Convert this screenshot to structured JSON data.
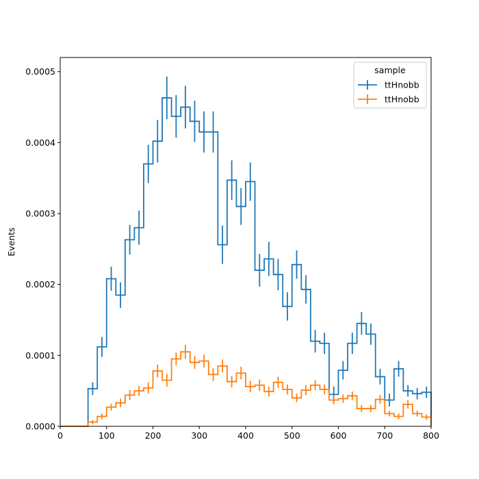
{
  "chart_data": {
    "type": "histogram-step",
    "xlabel": "",
    "ylabel": "Events",
    "xlim": [
      0,
      800
    ],
    "ylim": [
      0,
      0.00052
    ],
    "xticks": [
      0,
      100,
      200,
      300,
      400,
      500,
      600,
      700,
      800
    ],
    "xtick_labels": [
      "0",
      "100",
      "200",
      "300",
      "400",
      "500",
      "600",
      "700",
      "800"
    ],
    "yticks": [
      0,
      0.0001,
      0.0002,
      0.0003,
      0.0004,
      0.0005
    ],
    "ytick_labels": [
      "0.0000",
      "0.0001",
      "0.0002",
      "0.0003",
      "0.0004",
      "0.0005"
    ],
    "grid": false,
    "legend": {
      "title": "sample",
      "placement": "top-right"
    },
    "bin_edges": [
      0,
      20,
      40,
      60,
      80,
      100,
      120,
      140,
      160,
      180,
      200,
      220,
      240,
      260,
      280,
      300,
      320,
      340,
      360,
      380,
      400,
      420,
      440,
      460,
      480,
      500,
      520,
      540,
      560,
      580,
      600,
      620,
      640,
      660,
      680,
      700,
      720,
      740,
      760,
      780,
      800
    ],
    "series": [
      {
        "name": "ttHnobb",
        "color": "#1f77b4",
        "values": [
          0,
          0,
          0,
          5.3e-05,
          0.000112,
          0.000208,
          0.000185,
          0.000263,
          0.00028,
          0.00037,
          0.000402,
          0.000463,
          0.000437,
          0.00045,
          0.00043,
          0.000415,
          0.000415,
          0.000256,
          0.000347,
          0.00031,
          0.000345,
          0.00022,
          0.000236,
          0.000214,
          0.000169,
          0.000228,
          0.000193,
          0.00012,
          0.000117,
          4.5e-05,
          7.9e-05,
          0.000117,
          0.000145,
          0.00013,
          7e-05,
          3.7e-05,
          8.1e-05,
          5e-05,
          4.6e-05,
          4.8e-05
        ],
        "errors": [
          0,
          0,
          0,
          9e-06,
          1.4e-05,
          1.7e-05,
          1.8e-05,
          2.1e-05,
          2.4e-05,
          2.7e-05,
          3e-05,
          3e-05,
          3e-05,
          3e-05,
          2.9e-05,
          2.9e-05,
          2.9e-05,
          2.7e-05,
          2.8e-05,
          2.6e-05,
          2.7e-05,
          2.3e-05,
          2.4e-05,
          2.2e-05,
          2e-05,
          2e-05,
          2e-05,
          1.6e-05,
          1.5e-05,
          1.1e-05,
          1.3e-05,
          1.5e-05,
          1.6e-05,
          1.5e-05,
          1.1e-05,
          9e-06,
          1.1e-05,
          8e-06,
          8e-06,
          8e-06
        ]
      },
      {
        "name": "ttHnobb",
        "color": "#ff7f0e",
        "values": [
          0,
          0,
          0,
          6e-06,
          1.4e-05,
          2.7e-05,
          3.3e-05,
          4.4e-05,
          5e-05,
          5.4e-05,
          7.8e-05,
          6.5e-05,
          9.5e-05,
          0.000105,
          9e-05,
          9.2e-05,
          7.3e-05,
          8.5e-05,
          6.3e-05,
          7.5e-05,
          5.6e-05,
          5.8e-05,
          4.9e-05,
          6.2e-05,
          5.2e-05,
          4e-05,
          5.1e-05,
          5.8e-05,
          5.2e-05,
          3.7e-05,
          3.9e-05,
          4.3e-05,
          2.5e-05,
          2.5e-05,
          3.8e-05,
          1.8e-05,
          1.4e-05,
          3.1e-05,
          1.8e-05,
          1.3e-05
        ],
        "errors": [
          0,
          0,
          0,
          3e-06,
          4e-06,
          5e-06,
          6e-06,
          7e-06,
          7e-06,
          8e-06,
          9e-06,
          9e-06,
          9e-06,
          1e-05,
          9e-06,
          9e-06,
          9e-06,
          9e-06,
          8e-06,
          9e-06,
          8e-06,
          8e-06,
          7e-06,
          8e-06,
          7e-06,
          6e-06,
          7e-06,
          7e-06,
          7e-06,
          6e-06,
          6e-06,
          6e-06,
          5e-06,
          5e-06,
          6e-06,
          4e-06,
          4e-06,
          6e-06,
          4e-06,
          4e-06
        ]
      }
    ]
  }
}
